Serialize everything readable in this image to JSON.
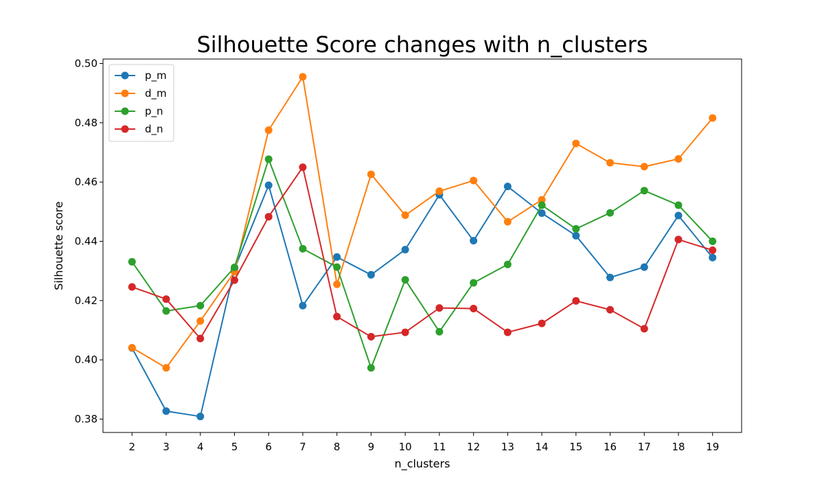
{
  "chart_data": {
    "type": "line",
    "title": "Silhouette Score changes with n_clusters",
    "xlabel": "n_clusters",
    "ylabel": "Silhouette score",
    "x": [
      2,
      3,
      4,
      5,
      6,
      7,
      8,
      9,
      10,
      11,
      12,
      13,
      14,
      15,
      16,
      17,
      18,
      19
    ],
    "xlim": [
      1.15,
      19.85
    ],
    "ylim": [
      0.3755,
      0.5015
    ],
    "yticks": [
      0.38,
      0.4,
      0.42,
      0.44,
      0.46,
      0.48,
      0.5
    ],
    "ytick_labels": [
      "0.38",
      "0.40",
      "0.42",
      "0.44",
      "0.46",
      "0.48",
      "0.50"
    ],
    "grid": false,
    "legend_position": "top-left",
    "series": [
      {
        "name": "p_m",
        "color": "#1f77b4",
        "values": [
          0.404,
          0.3827,
          0.3809,
          0.4307,
          0.4589,
          0.4183,
          0.4347,
          0.4287,
          0.4372,
          0.4557,
          0.4402,
          0.4585,
          0.4495,
          0.4419,
          0.4278,
          0.4313,
          0.4487,
          0.4345
        ]
      },
      {
        "name": "d_m",
        "color": "#ff7f0e",
        "values": [
          0.4041,
          0.3973,
          0.4131,
          0.4297,
          0.4775,
          0.4955,
          0.4255,
          0.4626,
          0.4488,
          0.4569,
          0.4605,
          0.4466,
          0.454,
          0.473,
          0.4665,
          0.4652,
          0.4678,
          0.4816
        ]
      },
      {
        "name": "p_n",
        "color": "#2ca02c",
        "values": [
          0.4331,
          0.4165,
          0.4183,
          0.4312,
          0.4677,
          0.4375,
          0.4313,
          0.3973,
          0.427,
          0.4095,
          0.426,
          0.4322,
          0.4522,
          0.4442,
          0.4496,
          0.4571,
          0.4522,
          0.44
        ]
      },
      {
        "name": "d_n",
        "color": "#d62728",
        "values": [
          0.4246,
          0.4205,
          0.4072,
          0.4269,
          0.4483,
          0.465,
          0.4146,
          0.4078,
          0.4093,
          0.4175,
          0.4173,
          0.4093,
          0.4123,
          0.4199,
          0.4169,
          0.4105,
          0.4406,
          0.437
        ]
      }
    ]
  }
}
